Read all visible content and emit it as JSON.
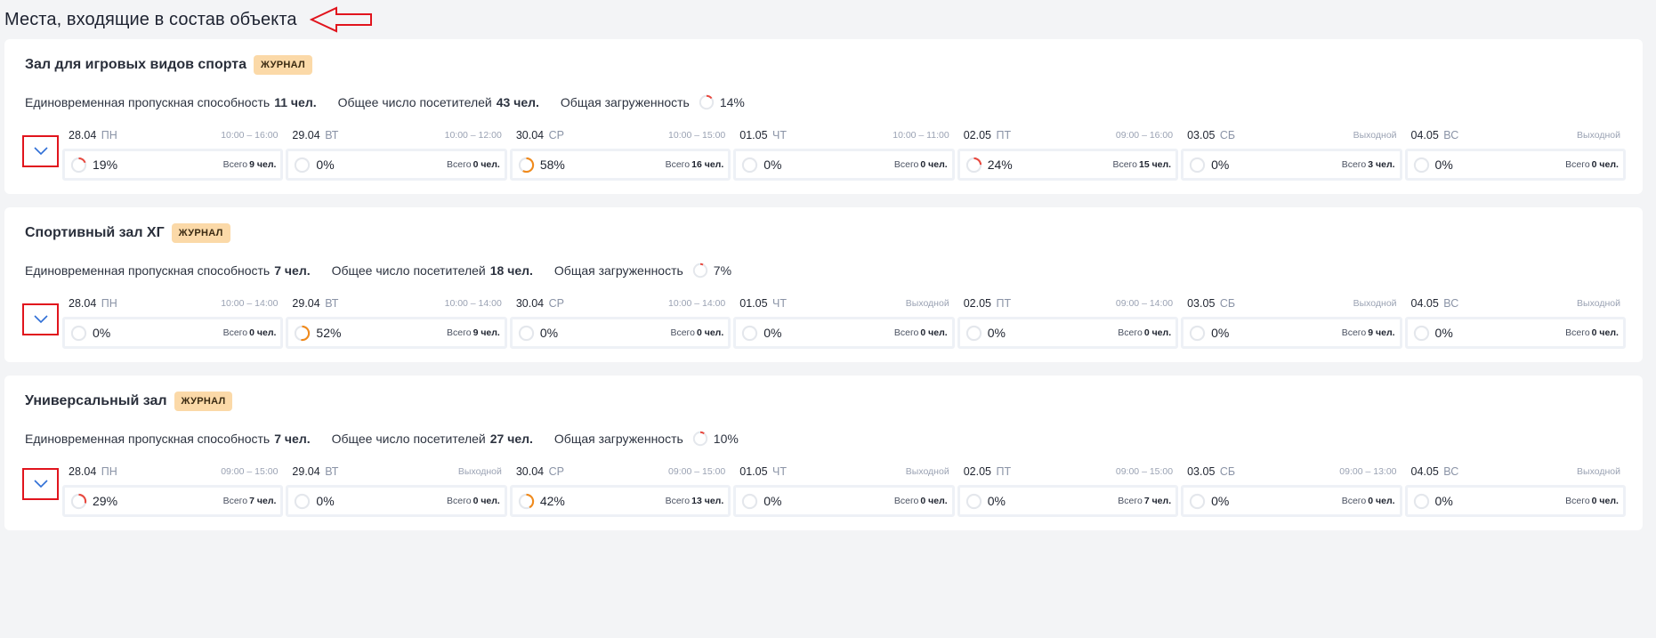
{
  "page": {
    "title": "Места, входящие в состав объекта"
  },
  "colors": {
    "ring_track": "#e4e7ec",
    "ring_low": "#e8483e",
    "ring_mid": "#f08a1c",
    "badge_bg": "#fbd9a8",
    "annotation_red": "#e1141d"
  },
  "labels": {
    "badge": "ЖУРНАЛ",
    "capacity": "Единовременная пропускная способность",
    "visitors": "Общее число посетителей",
    "load": "Общая загруженность",
    "total": "Всего"
  },
  "facilities": [
    {
      "name": "Зал для игровых видов спорта",
      "capacity": "11 чел.",
      "visitors": "43 чел.",
      "load_pct": 14,
      "load_text": "14%",
      "days": [
        {
          "date": "28.04",
          "dow": "ПН",
          "hours": "10:00 – 16:00",
          "pct": 19,
          "pct_text": "19%",
          "total": "9 чел."
        },
        {
          "date": "29.04",
          "dow": "ВТ",
          "hours": "10:00 – 12:00",
          "pct": 0,
          "pct_text": "0%",
          "total": "0 чел."
        },
        {
          "date": "30.04",
          "dow": "СР",
          "hours": "10:00 – 15:00",
          "pct": 58,
          "pct_text": "58%",
          "total": "16 чел."
        },
        {
          "date": "01.05",
          "dow": "ЧТ",
          "hours": "10:00 – 11:00",
          "pct": 0,
          "pct_text": "0%",
          "total": "0 чел."
        },
        {
          "date": "02.05",
          "dow": "ПТ",
          "hours": "09:00 – 16:00",
          "pct": 24,
          "pct_text": "24%",
          "total": "15 чел."
        },
        {
          "date": "03.05",
          "dow": "СБ",
          "hours": "Выходной",
          "pct": 0,
          "pct_text": "0%",
          "total": "3 чел."
        },
        {
          "date": "04.05",
          "dow": "ВС",
          "hours": "Выходной",
          "pct": 0,
          "pct_text": "0%",
          "total": "0 чел."
        }
      ]
    },
    {
      "name": "Спортивный зал ХГ",
      "capacity": "7 чел.",
      "visitors": "18 чел.",
      "load_pct": 7,
      "load_text": "7%",
      "days": [
        {
          "date": "28.04",
          "dow": "ПН",
          "hours": "10:00 – 14:00",
          "pct": 0,
          "pct_text": "0%",
          "total": "0 чел."
        },
        {
          "date": "29.04",
          "dow": "ВТ",
          "hours": "10:00 – 14:00",
          "pct": 52,
          "pct_text": "52%",
          "total": "9 чел."
        },
        {
          "date": "30.04",
          "dow": "СР",
          "hours": "10:00 – 14:00",
          "pct": 0,
          "pct_text": "0%",
          "total": "0 чел."
        },
        {
          "date": "01.05",
          "dow": "ЧТ",
          "hours": "Выходной",
          "pct": 0,
          "pct_text": "0%",
          "total": "0 чел."
        },
        {
          "date": "02.05",
          "dow": "ПТ",
          "hours": "09:00 – 14:00",
          "pct": 0,
          "pct_text": "0%",
          "total": "0 чел."
        },
        {
          "date": "03.05",
          "dow": "СБ",
          "hours": "Выходной",
          "pct": 0,
          "pct_text": "0%",
          "total": "9 чел."
        },
        {
          "date": "04.05",
          "dow": "ВС",
          "hours": "Выходной",
          "pct": 0,
          "pct_text": "0%",
          "total": "0 чел."
        }
      ]
    },
    {
      "name": "Универсальный зал",
      "capacity": "7 чел.",
      "visitors": "27 чел.",
      "load_pct": 10,
      "load_text": "10%",
      "days": [
        {
          "date": "28.04",
          "dow": "ПН",
          "hours": "09:00 – 15:00",
          "pct": 29,
          "pct_text": "29%",
          "total": "7 чел."
        },
        {
          "date": "29.04",
          "dow": "ВТ",
          "hours": "Выходной",
          "pct": 0,
          "pct_text": "0%",
          "total": "0 чел."
        },
        {
          "date": "30.04",
          "dow": "СР",
          "hours": "09:00 – 15:00",
          "pct": 42,
          "pct_text": "42%",
          "total": "13 чел."
        },
        {
          "date": "01.05",
          "dow": "ЧТ",
          "hours": "Выходной",
          "pct": 0,
          "pct_text": "0%",
          "total": "0 чел."
        },
        {
          "date": "02.05",
          "dow": "ПТ",
          "hours": "09:00 – 15:00",
          "pct": 0,
          "pct_text": "0%",
          "total": "7 чел."
        },
        {
          "date": "03.05",
          "dow": "СБ",
          "hours": "09:00 – 13:00",
          "pct": 0,
          "pct_text": "0%",
          "total": "0 чел."
        },
        {
          "date": "04.05",
          "dow": "ВС",
          "hours": "Выходной",
          "pct": 0,
          "pct_text": "0%",
          "total": "0 чел."
        }
      ]
    }
  ]
}
